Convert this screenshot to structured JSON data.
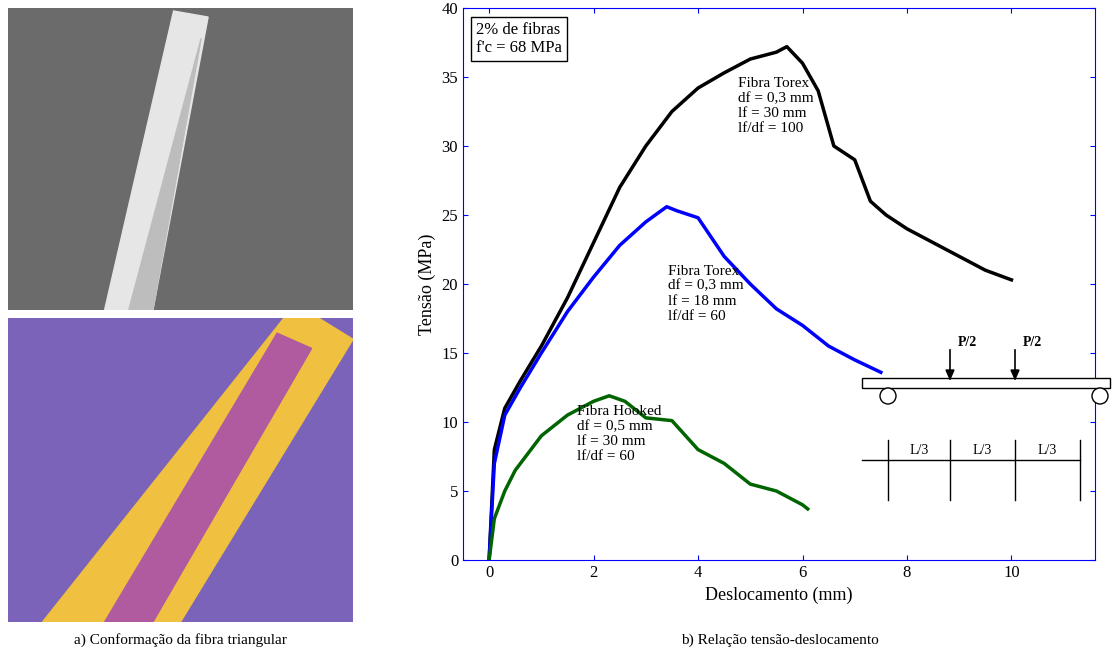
{
  "chart_data": {
    "type": "line",
    "x_label": "Deslocamento (mm)",
    "y_label": "Tensão (MPa)",
    "annotations": [
      "2% de fibras",
      "f'c = 68 MPa"
    ],
    "xlim": [
      -0.5,
      11.6
    ],
    "xticks": [
      0,
      2,
      4,
      6,
      8,
      10
    ],
    "ylim": [
      0,
      40
    ],
    "yticks": [
      0,
      5,
      10,
      15,
      20,
      25,
      30,
      35,
      40
    ],
    "grid": false,
    "series": [
      {
        "name": "Fibra Torex",
        "params": [
          "df = 0,3 mm",
          "lf = 30 mm",
          "lf/df = 100"
        ],
        "color": "#000000",
        "x": [
          0,
          0.1,
          0.3,
          0.6,
          1,
          1.5,
          2,
          2.5,
          3,
          3.5,
          4,
          4.5,
          5,
          5.5,
          5.7,
          6,
          6.3,
          6.6,
          7,
          7.3,
          7.6,
          7.8,
          8,
          8.5,
          9,
          9.5,
          10
        ],
        "values": [
          0,
          8,
          11,
          13,
          15.5,
          19,
          23,
          27,
          30,
          32.5,
          34.2,
          35.3,
          36.3,
          36.8,
          37.2,
          36,
          34,
          30,
          29,
          26,
          25,
          24.5,
          24,
          23,
          22,
          21,
          20.3
        ]
      },
      {
        "name": "Fibra Torex",
        "params": [
          "df = 0,3 mm",
          "lf = 18 mm",
          "lf/df = 60"
        ],
        "color": "#0000ff",
        "x": [
          0,
          0.1,
          0.3,
          0.6,
          1,
          1.5,
          2,
          2.5,
          3,
          3.4,
          3.6,
          4,
          4.5,
          5,
          5.5,
          6,
          6.5,
          7,
          7.5
        ],
        "values": [
          0,
          7,
          10.5,
          12.5,
          15,
          18,
          20.5,
          22.8,
          24.5,
          25.6,
          25.3,
          24.8,
          22,
          20,
          18.2,
          17,
          15.5,
          14.5,
          13.6
        ]
      },
      {
        "name": "Fibra Hooked",
        "params": [
          "df = 0,5 mm",
          "lf = 30 mm",
          "lf/df = 60"
        ],
        "color": "#006400",
        "x": [
          0,
          0.1,
          0.3,
          0.5,
          0.8,
          1,
          1.5,
          2,
          2.3,
          2.6,
          3,
          3.5,
          4,
          4.5,
          5,
          5.5,
          6,
          6.1
        ],
        "values": [
          0,
          3,
          5,
          6.5,
          8,
          9,
          10.5,
          11.5,
          11.9,
          11.5,
          10.3,
          10.1,
          8,
          7,
          5.5,
          5,
          4,
          3.7
        ]
      }
    ],
    "diagram": {
      "loads": [
        "P/2",
        "P/2"
      ],
      "spans": [
        "L/3",
        "L/3",
        "L/3"
      ]
    }
  },
  "captions": [
    "a) Conformação da fibra triangular",
    "b) Relação tensão-deslocamento"
  ]
}
